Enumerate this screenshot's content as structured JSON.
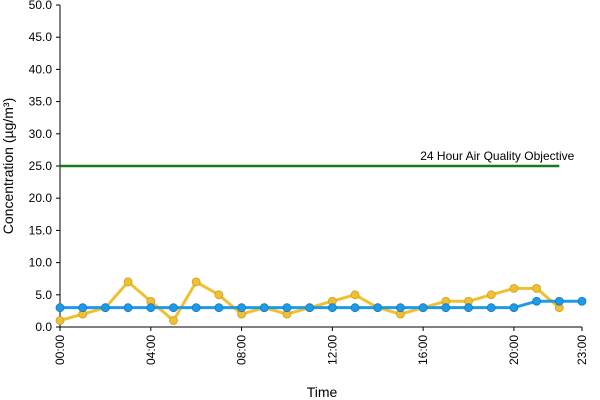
{
  "chart_data": {
    "type": "line",
    "x_label": "Time",
    "y_label": "Concentration (µg/m³)",
    "x": [
      0,
      1,
      2,
      3,
      4,
      5,
      6,
      7,
      8,
      9,
      10,
      11,
      12,
      13,
      14,
      15,
      16,
      17,
      18,
      19,
      20,
      21,
      22,
      23
    ],
    "xlim": [
      0,
      23
    ],
    "xticks": [
      {
        "value": 0,
        "label": "00:00"
      },
      {
        "value": 4,
        "label": "04:00"
      },
      {
        "value": 8,
        "label": "08:00"
      },
      {
        "value": 12,
        "label": "12:00"
      },
      {
        "value": 16,
        "label": "16:00"
      },
      {
        "value": 20,
        "label": "20:00"
      },
      {
        "value": 23,
        "label": "23:00"
      }
    ],
    "ylim": [
      0,
      50
    ],
    "yticks": [
      {
        "value": 0,
        "label": "0.0"
      },
      {
        "value": 5,
        "label": "5.0"
      },
      {
        "value": 10,
        "label": "10.0"
      },
      {
        "value": 15,
        "label": "15.0"
      },
      {
        "value": 20,
        "label": "20.0"
      },
      {
        "value": 25,
        "label": "25.0"
      },
      {
        "value": 30,
        "label": "30.0"
      },
      {
        "value": 35,
        "label": "35.0"
      },
      {
        "value": 40,
        "label": "40.0"
      },
      {
        "value": 45,
        "label": "45.0"
      },
      {
        "value": 50,
        "label": "50.0"
      }
    ],
    "grid": false,
    "series": [
      {
        "color": "#f0c030",
        "values": [
          1,
          2,
          3,
          7,
          4,
          1,
          7,
          5,
          2,
          3,
          2,
          3,
          4,
          5,
          3,
          2,
          3,
          4,
          4,
          5,
          6,
          6,
          3,
          null
        ]
      },
      {
        "color": "#1e9be8",
        "values": [
          3,
          3,
          3,
          3,
          3,
          3,
          3,
          3,
          3,
          3,
          3,
          3,
          3,
          3,
          3,
          3,
          3,
          3,
          3,
          3,
          3,
          4,
          4,
          4
        ]
      }
    ],
    "objective": {
      "value": 25,
      "label": "24 Hour Air Quality Objective",
      "color": "#1a7a1a",
      "x_range": [
        0,
        22
      ]
    }
  }
}
